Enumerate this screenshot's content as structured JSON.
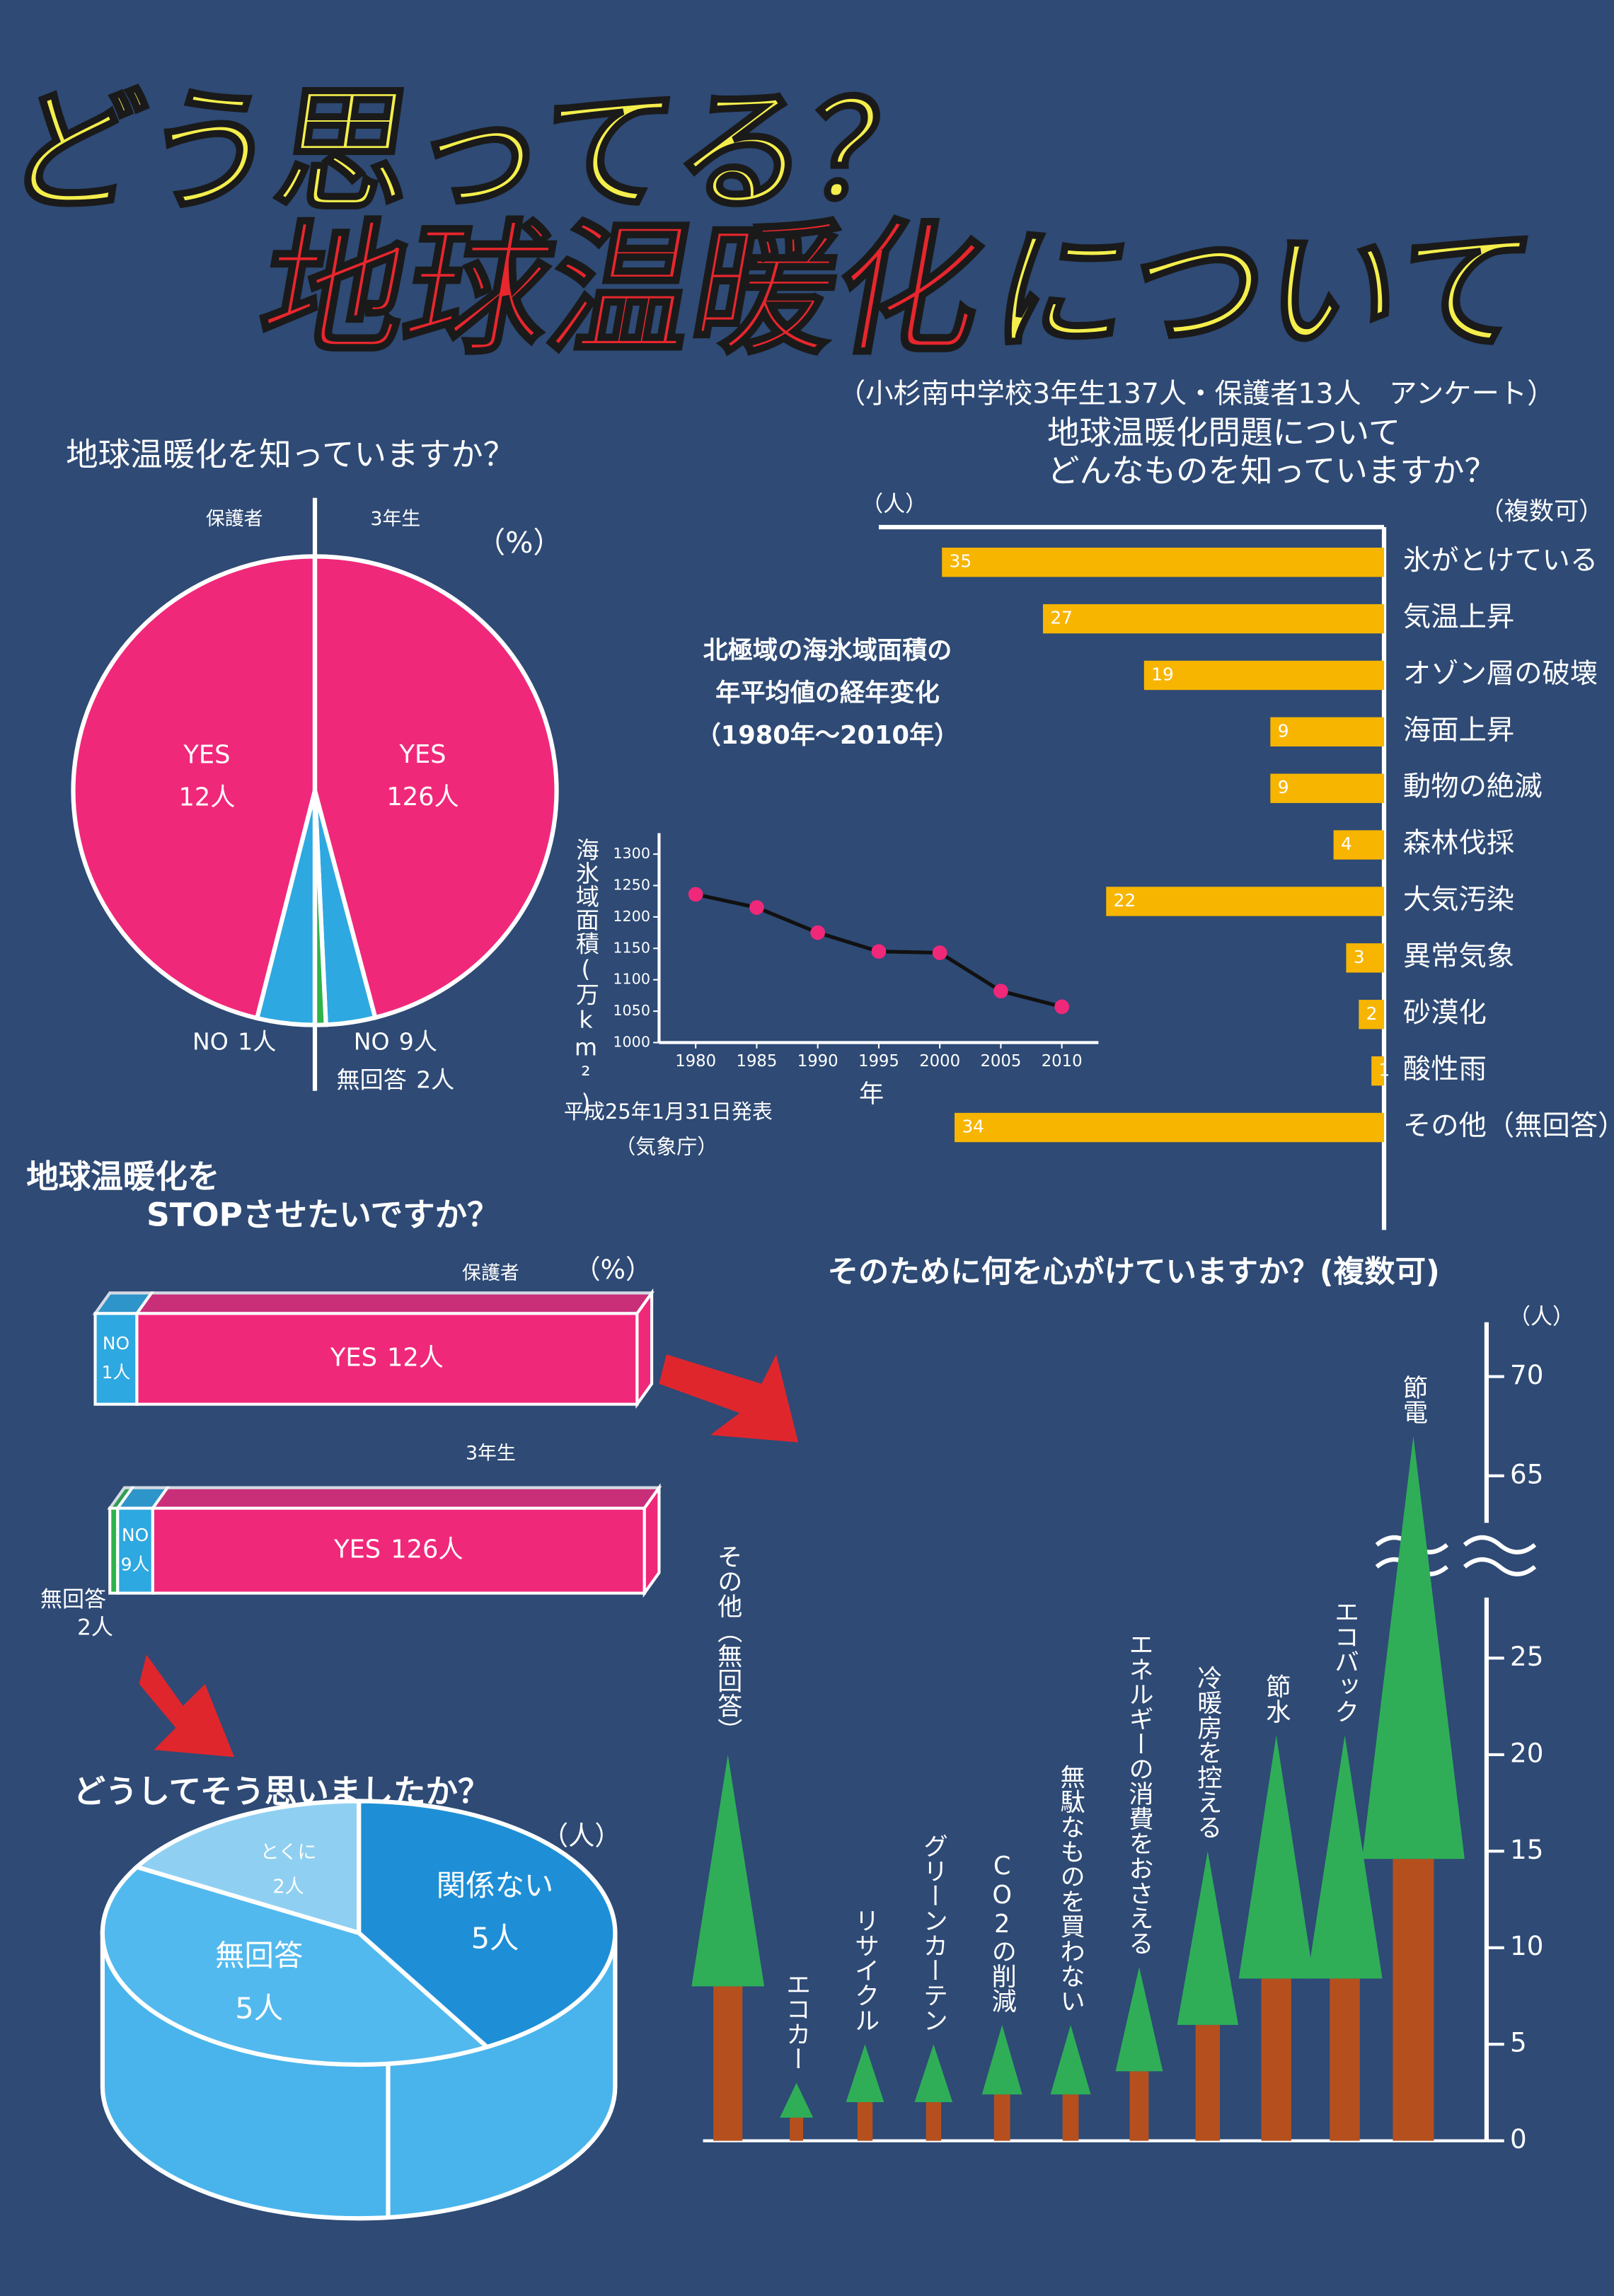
{
  "header": {
    "title_top": "どう思ってる？",
    "title_red": "地球温暖化",
    "title_yellow": "について",
    "subtitle": "（小杉南中学校3年生137人・保護者13人　アンケート）"
  },
  "chart_data": [
    {
      "type": "split_pie",
      "title": "地球温暖化を知っていますか？",
      "unit": "（%）",
      "groups": [
        {
          "name": "保護者",
          "categories": [
            "YES",
            "NO"
          ],
          "values": [
            12,
            1
          ],
          "value_labels": [
            "12人",
            "1人"
          ],
          "colors": [
            "#f0287a",
            "#2ea8e0"
          ]
        },
        {
          "name": "3年生",
          "categories": [
            "YES",
            "NO",
            "無回答"
          ],
          "values": [
            126,
            9,
            2
          ],
          "value_labels": [
            "126人",
            "9人",
            "2人"
          ],
          "colors": [
            "#f0287a",
            "#2ea8e0",
            "#2db34a"
          ]
        }
      ]
    },
    {
      "type": "hbar",
      "title": [
        "地球温暖化問題について",
        "どんなものを知っていますか？"
      ],
      "note": "（複数可）",
      "unit": "（人）",
      "categories": [
        "氷がとけている",
        "気温上昇",
        "オゾン層の破壊",
        "海面上昇",
        "動物の絶滅",
        "森林伐採",
        "大気汚染",
        "異常気象",
        "砂漠化",
        "酸性雨",
        "その他（無回答）"
      ],
      "values": [
        35,
        27,
        19,
        9,
        9,
        4,
        22,
        3,
        2,
        1,
        34
      ],
      "color": "#f7b500",
      "xlim": [
        0,
        40
      ]
    },
    {
      "type": "line",
      "title": [
        "北極域の海氷域面積の",
        "年平均値の経年変化",
        "（1980年～2010年）"
      ],
      "y_label": "海氷域面積(万km²)",
      "x_label": "年",
      "x": [
        1980,
        1985,
        1990,
        1995,
        2000,
        2005,
        2010
      ],
      "values": [
        1236,
        1215,
        1175,
        1145,
        1143,
        1082,
        1057
      ],
      "xlim": [
        1977,
        2013
      ],
      "ylim": [
        1000,
        1310
      ],
      "xticks": [
        1980,
        1985,
        1990,
        1995,
        2000,
        2005,
        2010
      ],
      "yticks": [
        1000,
        1050,
        1100,
        1150,
        1200,
        1250,
        1300
      ],
      "color": "#f0287a",
      "line_color": "#111111",
      "source": [
        "平成25年1月31日発表",
        "（気象庁）"
      ]
    },
    {
      "type": "stacked_box",
      "title": [
        "地球温暖化を",
        "STOPさせたいですか？"
      ],
      "unit": "（%）",
      "categories": [
        "保護者",
        "3年生"
      ],
      "series": [
        {
          "name": "無回答",
          "color": "#2db34a",
          "values": [
            null,
            2
          ],
          "value_labels": [
            null,
            "2人"
          ]
        },
        {
          "name": "NO",
          "color": "#2ea8e0",
          "values": [
            1,
            9
          ],
          "value_labels": [
            "1人",
            "9人"
          ]
        },
        {
          "name": "YES",
          "color": "#f0287a",
          "values": [
            12,
            126
          ],
          "value_labels": [
            "12人",
            "126人"
          ]
        }
      ]
    },
    {
      "type": "pie3d",
      "title": "どうしてそう思いましたか？",
      "unit": "（人）",
      "categories": [
        "関係ない",
        "無回答",
        "とくに"
      ],
      "values": [
        5,
        5,
        2
      ],
      "value_labels": [
        "5人",
        "5人",
        "2人"
      ],
      "colors": [
        "#1e8fd6",
        "#52b9ee",
        "#8fd0f2"
      ]
    },
    {
      "type": "trees",
      "title": "そのために何を心がけていますか？(複数可)",
      "unit": "（人）",
      "categories": [
        "その他（無回答）",
        "エコカー",
        "リサイクル",
        "グリーンカーテン",
        "CO2の削減",
        "無駄なものを買わない",
        "エネルギーの消費をおさえる",
        "冷暖房を控える",
        "節水",
        "エコバック",
        "節電"
      ],
      "values": [
        20,
        3,
        5,
        5,
        6,
        6,
        9,
        15,
        21,
        21,
        67
      ],
      "ylim": [
        0,
        72
      ],
      "axis_break": [
        27,
        63
      ],
      "yticks": [
        0,
        5,
        10,
        15,
        20,
        25,
        65,
        70
      ],
      "color": "#2fae57",
      "trunk_color": "#b5501e"
    }
  ]
}
